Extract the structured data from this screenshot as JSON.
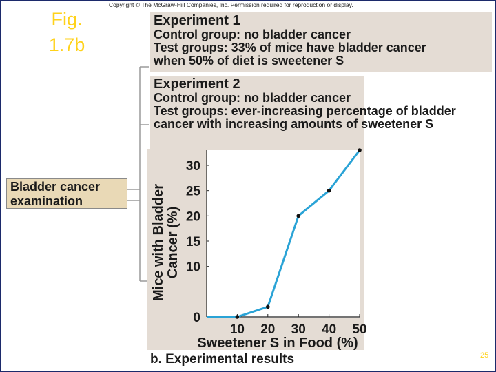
{
  "copyright": "Copyright © The McGraw-Hill Companies, Inc. Permission required for reproduction or display.",
  "fig_label": "Fig. 1.7b",
  "experiment1": {
    "title": "Experiment 1",
    "lines": [
      "Control group: no bladder cancer",
      "Test groups: 33% of mice have bladder cancer",
      "when 50% of diet is sweetener S"
    ]
  },
  "experiment2": {
    "title": "Experiment 2",
    "lines": [
      "Control group: no bladder cancer",
      "Test groups: ever-increasing percentage of bladder cancer with increasing amounts of sweetener S"
    ]
  },
  "exam_label": "Bladder cancer examination",
  "caption": "b. Experimental results",
  "page_number": "25",
  "colors": {
    "line": "#2aa3d6",
    "marker": "#111111",
    "panel": "#e4dcd4",
    "fig_label": "#ffd21a"
  },
  "chart_data": {
    "type": "line",
    "x": [
      0,
      10,
      20,
      30,
      40,
      50
    ],
    "series": [
      {
        "values": [
          0,
          0,
          2,
          20,
          25,
          33
        ],
        "markers_at": [
          10,
          20,
          30,
          40,
          50
        ]
      }
    ],
    "xticks": [
      "10",
      "20",
      "30",
      "40",
      "50"
    ],
    "yticks": [
      "0",
      "10",
      "15",
      "20",
      "25",
      "30"
    ],
    "xlabel": "Sweetener S in Food (%)",
    "ylabel_line1": "Mice with Bladder",
    "ylabel_line2": "Cancer (%)",
    "xlim": [
      0,
      50
    ],
    "ylim": [
      0,
      33
    ],
    "grid": false
  }
}
